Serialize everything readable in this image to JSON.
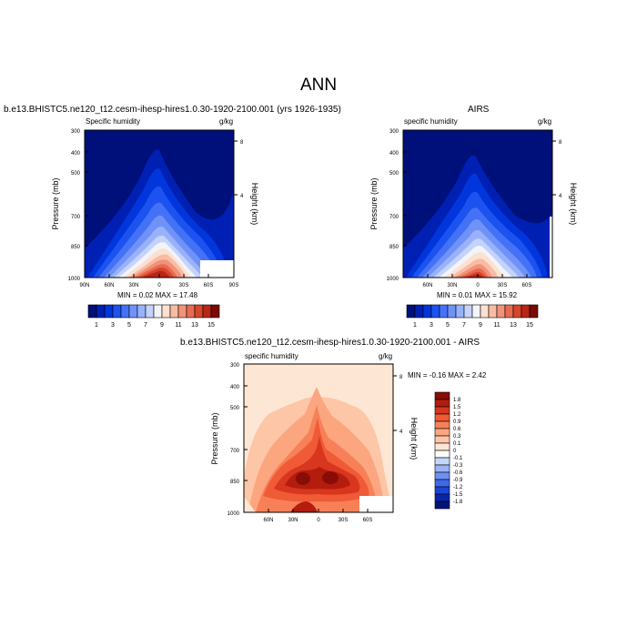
{
  "figure": {
    "title": "ANN"
  },
  "chart_data": [
    {
      "type": "heatmap",
      "title": "b.e13.BHISTC5.ne120_t12.cesm-ihesp-hires1.0.30-1920-2100.001 (yrs 1926-1935)",
      "left_label": "Specific humidity",
      "right_label": "g/kg",
      "ylabel": "Pressure (mb)",
      "ylabel_right": "Height (km)",
      "y_ticks": [
        "300",
        "400",
        "500",
        "700",
        "850",
        "1000"
      ],
      "y_ticks_right": [
        "8",
        "4"
      ],
      "x_ticks": [
        "90N",
        "60N",
        "30N",
        "0",
        "30S",
        "60S",
        "90S"
      ],
      "stats": "MIN =   0.02   MAX =  17.48",
      "min": 0.02,
      "max": 17.48,
      "colorbar": {
        "orientation": "horizontal",
        "labels": [
          "1",
          "3",
          "5",
          "7",
          "9",
          "11",
          "13",
          "15"
        ],
        "colors": [
          "#00107a",
          "#0020b4",
          "#0036dc",
          "#1c52f0",
          "#4472f6",
          "#7092f8",
          "#98b2fa",
          "#c4d2fc",
          "#f2f4fa",
          "#fce0d0",
          "#f8bca4",
          "#f2927a",
          "#e86a52",
          "#d8442c",
          "#b82618",
          "#7c0a04"
        ]
      }
    },
    {
      "type": "heatmap",
      "title": "AIRS",
      "left_label": "specific humidity",
      "right_label": "g/kg",
      "ylabel": "Pressure (mb)",
      "ylabel_right": "Height (km)",
      "y_ticks": [
        "300",
        "400",
        "500",
        "700",
        "850",
        "1000"
      ],
      "y_ticks_right": [
        "8",
        "4"
      ],
      "x_ticks": [
        "60N",
        "30N",
        "0",
        "30S",
        "60S"
      ],
      "stats": "MIN =   0.01   MAX =  15.92",
      "min": 0.01,
      "max": 15.92,
      "colorbar": {
        "orientation": "horizontal",
        "labels": [
          "1",
          "3",
          "5",
          "7",
          "9",
          "11",
          "13",
          "15"
        ],
        "colors": [
          "#00107a",
          "#0020b4",
          "#0036dc",
          "#1c52f0",
          "#4472f6",
          "#7092f8",
          "#98b2fa",
          "#c4d2fc",
          "#f2f4fa",
          "#fce0d0",
          "#f8bca4",
          "#f2927a",
          "#e86a52",
          "#d8442c",
          "#b82618",
          "#7c0a04"
        ]
      }
    },
    {
      "type": "heatmap",
      "title": "b.e13.BHISTC5.ne120_t12.cesm-ihesp-hires1.0.30-1920-2100.001 - AIRS",
      "left_label": "specific humidity",
      "right_label": "g/kg",
      "ylabel": "Pressure (mb)",
      "ylabel_right": "Height (km)",
      "y_ticks": [
        "300",
        "400",
        "500",
        "700",
        "850",
        "1000"
      ],
      "y_ticks_right": [
        "8",
        "4"
      ],
      "x_ticks": [
        "60N",
        "30N",
        "0",
        "30S",
        "60S"
      ],
      "stats": "MIN =  -0.16   MAX =   2.42",
      "min": -0.16,
      "max": 2.42,
      "colorbar": {
        "orientation": "vertical",
        "labels": [
          "1.8",
          "1.5",
          "1.2",
          "0.9",
          "0.6",
          "0.3",
          "0.1",
          "0",
          "-0.1",
          "-0.3",
          "-0.6",
          "-0.9",
          "-1.2",
          "-1.5",
          "-1.8"
        ],
        "colors": [
          "#8a0c06",
          "#b41c0e",
          "#d8361e",
          "#f05a36",
          "#f88058",
          "#fca680",
          "#fdc6a6",
          "#fde6d4",
          "#fafaf6",
          "#c6d6fa",
          "#9ab4f6",
          "#6e90f2",
          "#4068ea",
          "#1c44d8",
          "#0a26a8",
          "#02147a"
        ]
      }
    }
  ]
}
